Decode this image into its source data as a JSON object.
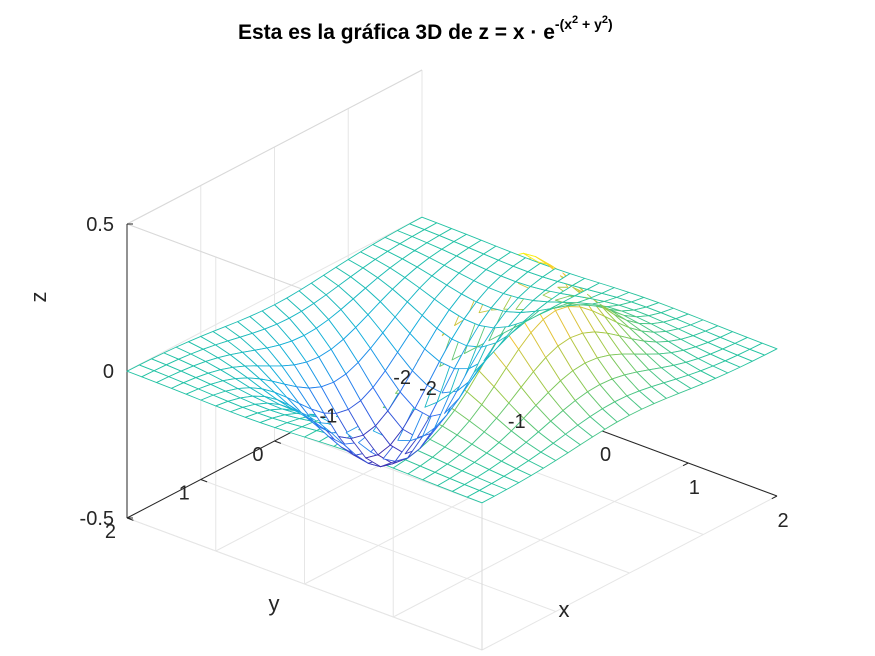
{
  "chart_data": {
    "type": "surface-mesh",
    "title": {
      "main": "Esta es la gráfica 3D de z = x · e",
      "exp_open": "-(x",
      "exp_sq1": "2",
      "exp_mid": " + y",
      "exp_sq2": "2",
      "exp_close": ")"
    },
    "function": "z = x · e^(-(x^2 + y^2))",
    "x_range": [
      -2,
      2
    ],
    "y_range": [
      -2,
      2
    ],
    "z_range": [
      -0.5,
      0.5
    ],
    "grid_points": 25,
    "xlabel": "x",
    "ylabel": "y",
    "zlabel": "z",
    "x_ticks": [
      "-2",
      "-1",
      "0",
      "1",
      "2"
    ],
    "y_ticks": [
      "-2",
      "-1",
      "0",
      "1",
      "2"
    ],
    "z_ticks": [
      "-0.5",
      "0",
      "0.5"
    ],
    "colormap": "parula",
    "colormap_stops": [
      "#3e26a8",
      "#2f6ff2",
      "#13aee0",
      "#24c3a3",
      "#97ca4b",
      "#f5c236",
      "#f9fb0e"
    ],
    "grid": true,
    "box_color": "#d9d9d9"
  }
}
